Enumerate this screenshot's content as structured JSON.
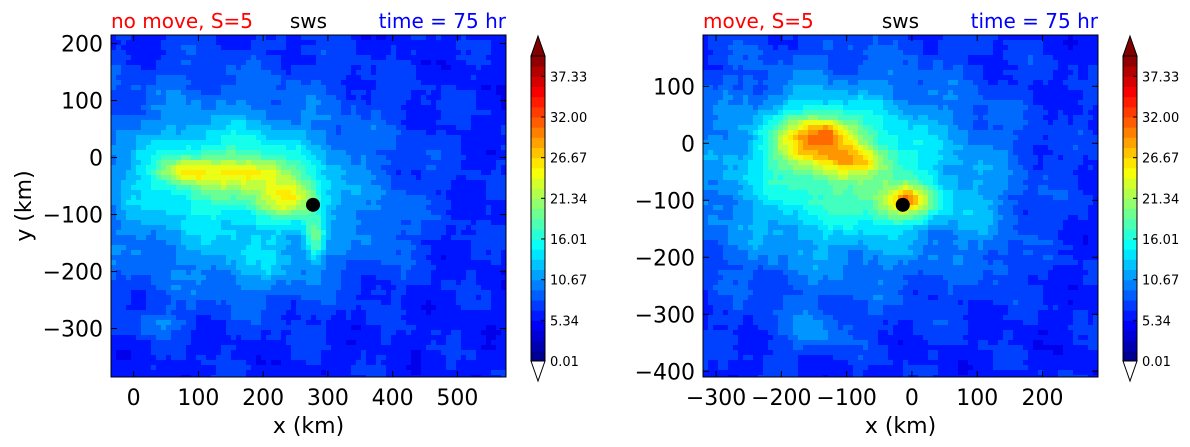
{
  "chart_data": [
    {
      "type": "heatmap",
      "variable": "sws",
      "title_left": "no move, S=5",
      "title_center": "sws",
      "title_right": "time = 75 hr",
      "xlabel": "x (km)",
      "ylabel": "y (km)",
      "xlim": [
        -35,
        575
      ],
      "ylim": [
        -385,
        215
      ],
      "xticks": [
        0,
        100,
        200,
        300,
        400,
        500
      ],
      "yticks": [
        200,
        100,
        0,
        -100,
        -200,
        -300
      ],
      "marker": {
        "x": 277,
        "y": -83
      },
      "colorbar": {
        "ticks": [
          "0.01",
          "5.34",
          "10.67",
          "16.01",
          "21.34",
          "26.67",
          "32.00",
          "37.33"
        ],
        "min": 0.01,
        "max": 40.0,
        "extend": "both"
      },
      "features": [
        {
          "x": 140,
          "y": -45,
          "sx": 175,
          "sy": 125,
          "v": 7
        },
        {
          "x": 150,
          "y": -30,
          "sx": 90,
          "sy": 50,
          "v": 7
        },
        {
          "x": 80,
          "y": -25,
          "sx": 30,
          "sy": 15,
          "v": 8
        },
        {
          "x": 185,
          "y": -25,
          "sx": 35,
          "sy": 16,
          "v": 7
        },
        {
          "x": 245,
          "y": -70,
          "sx": 35,
          "sy": 25,
          "v": 10
        },
        {
          "x": 280,
          "y": -140,
          "sx": 10,
          "sy": 28,
          "v": 9
        },
        {
          "x": 200,
          "y": -185,
          "sx": 70,
          "sy": 45,
          "v": 3
        },
        {
          "x": 40,
          "y": -290,
          "sx": 30,
          "sy": 14,
          "v": 3
        },
        {
          "x": 390,
          "y": -125,
          "sx": 30,
          "sy": 40,
          "v": 2
        }
      ]
    },
    {
      "type": "heatmap",
      "variable": "sws",
      "title_left": "move, S=5",
      "title_center": "sws",
      "title_right": "time = 75 hr",
      "xlabel": "x (km)",
      "ylabel": "",
      "xlim": [
        -320,
        285
      ],
      "ylim": [
        -410,
        190
      ],
      "xticks": [
        -300,
        -200,
        -100,
        0,
        100,
        200
      ],
      "yticks": [
        100,
        0,
        -100,
        -200,
        -300,
        -400
      ],
      "marker": {
        "x": -14,
        "y": -108
      },
      "colorbar": {
        "ticks": [
          "0.01",
          "5.34",
          "10.67",
          "16.01",
          "21.34",
          "26.67",
          "32.00",
          "37.33"
        ],
        "min": 0.01,
        "max": 40.0,
        "extend": "both"
      },
      "features": [
        {
          "x": -110,
          "y": -60,
          "sx": 175,
          "sy": 135,
          "v": 8
        },
        {
          "x": -90,
          "y": -40,
          "sx": 90,
          "sy": 70,
          "v": 5
        },
        {
          "x": -150,
          "y": 5,
          "sx": 45,
          "sy": 35,
          "v": 13
        },
        {
          "x": -130,
          "y": 22,
          "sx": 20,
          "sy": 14,
          "v": 5
        },
        {
          "x": -80,
          "y": -30,
          "sx": 30,
          "sy": 16,
          "v": 6
        },
        {
          "x": -10,
          "y": -105,
          "sx": 35,
          "sy": 22,
          "v": 11
        },
        {
          "x": -5,
          "y": -95,
          "sx": 12,
          "sy": 10,
          "v": 5
        },
        {
          "x": -150,
          "y": -330,
          "sx": 40,
          "sy": 30,
          "v": 3
        },
        {
          "x": 140,
          "y": -220,
          "sx": 18,
          "sy": 15,
          "v": 2
        },
        {
          "x": 110,
          "y": -120,
          "sx": 35,
          "sy": 60,
          "v": 2
        }
      ]
    }
  ]
}
